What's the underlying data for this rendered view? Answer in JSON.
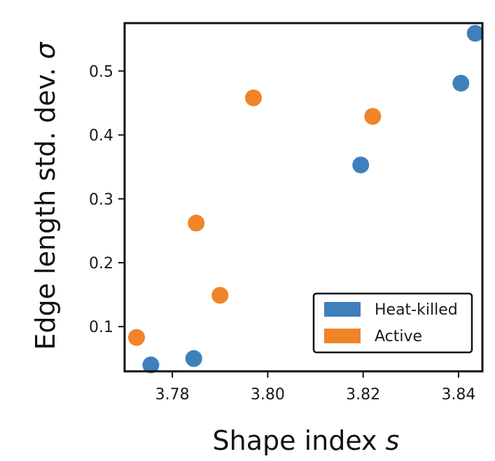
{
  "chart_data": {
    "type": "scatter",
    "xlabel": "Shape index",
    "xlabel_symbol": "s",
    "ylabel": "Edge length std. dev.",
    "ylabel_symbol": "σ",
    "xlim": [
      3.77,
      3.845
    ],
    "ylim": [
      0.03,
      0.575
    ],
    "xticks": [
      3.78,
      3.8,
      3.82,
      3.84
    ],
    "xtick_labels": [
      "3.78",
      "3.80",
      "3.82",
      "3.84"
    ],
    "yticks": [
      0.1,
      0.2,
      0.3,
      0.4,
      0.5
    ],
    "ytick_labels": [
      "0.1",
      "0.2",
      "0.3",
      "0.4",
      "0.5"
    ],
    "grid": false,
    "legend_position": "bottom-right",
    "series": [
      {
        "name": "Heat-killed",
        "color": "#3f7fbc",
        "points": [
          {
            "x": 3.7755,
            "y": 0.04
          },
          {
            "x": 3.7845,
            "y": 0.05
          },
          {
            "x": 3.8195,
            "y": 0.353
          },
          {
            "x": 3.8405,
            "y": 0.481
          },
          {
            "x": 3.8435,
            "y": 0.559
          }
        ]
      },
      {
        "name": "Active",
        "color": "#f0842a",
        "points": [
          {
            "x": 3.7725,
            "y": 0.083
          },
          {
            "x": 3.785,
            "y": 0.262
          },
          {
            "x": 3.79,
            "y": 0.149
          },
          {
            "x": 3.797,
            "y": 0.458
          },
          {
            "x": 3.822,
            "y": 0.429
          }
        ]
      }
    ]
  }
}
